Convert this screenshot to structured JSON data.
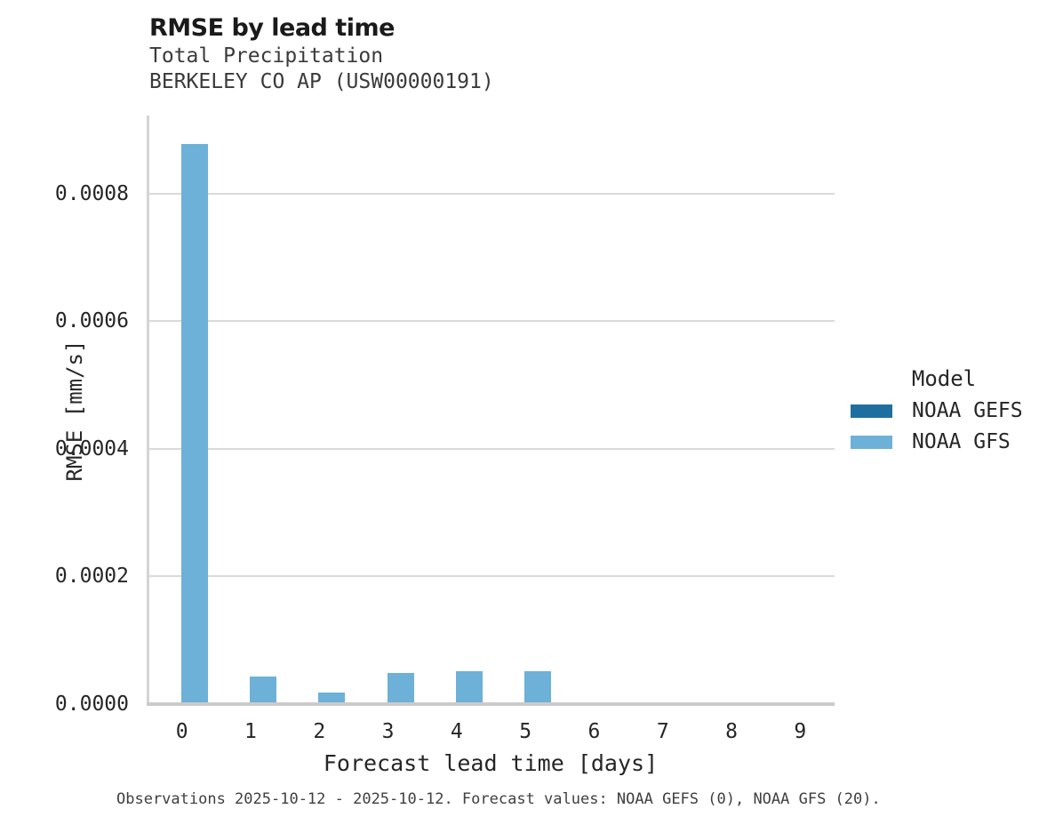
{
  "header": {
    "title": "RMSE by lead time",
    "subtitle_line1": "Total Precipitation",
    "subtitle_line2": "BERKELEY CO AP (USW00000191)"
  },
  "footer": {
    "caption": "Observations 2025-10-12 - 2025-10-12. Forecast values: NOAA GEFS (0), NOAA GFS (20)."
  },
  "chart_data": {
    "type": "bar",
    "title": "RMSE by lead time",
    "subtitle": [
      "Total Precipitation",
      "BERKELEY CO AP (USW00000191)"
    ],
    "xlabel": "Forecast lead time [days]",
    "ylabel": "RMSE [mm/s]",
    "categories": [
      "0",
      "1",
      "2",
      "3",
      "4",
      "5",
      "6",
      "7",
      "8",
      "9"
    ],
    "series": [
      {
        "name": "NOAA GEFS",
        "color": "#1e6f9f",
        "values": [
          0,
          0,
          0,
          0,
          0,
          0,
          0,
          0,
          0,
          0
        ]
      },
      {
        "name": "NOAA GFS",
        "color": "#6db1d8",
        "values": [
          0.000876,
          4.1e-05,
          1.6e-05,
          4.6e-05,
          4.9e-05,
          4.9e-05,
          0,
          0,
          0,
          0
        ]
      }
    ],
    "ylim": [
      0,
      0.00092
    ],
    "yticks": [
      0,
      0.0002,
      0.0004,
      0.0006,
      0.0008
    ],
    "ytick_labels": [
      "0.0000",
      "0.0002",
      "0.0004",
      "0.0006",
      "0.0008"
    ],
    "grid": true,
    "legend_title": "Model",
    "legend_position": "right",
    "caption": "Observations 2025-10-12 - 2025-10-12. Forecast values: NOAA GEFS (0), NOAA GFS (20)."
  }
}
